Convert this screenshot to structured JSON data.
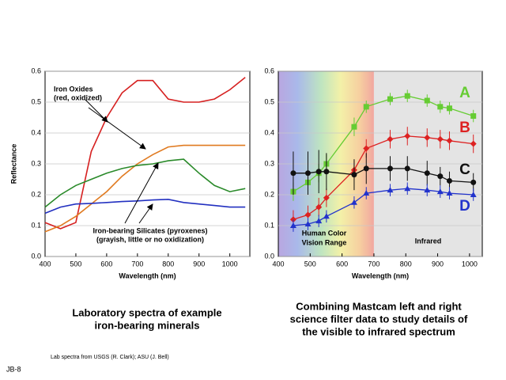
{
  "chart_data": [
    {
      "type": "line",
      "xlabel": "Wavelength (nm)",
      "ylabel": "Reflectance",
      "x": [
        400,
        450,
        500,
        550,
        600,
        650,
        700,
        750,
        800,
        850,
        900,
        950,
        1000,
        1050
      ],
      "series": [
        {
          "color": "#d62020",
          "values": [
            0.11,
            0.09,
            0.11,
            0.34,
            0.45,
            0.53,
            0.57,
            0.57,
            0.51,
            0.5,
            0.5,
            0.51,
            0.54,
            0.58
          ]
        },
        {
          "color": "#e07a20",
          "values": [
            0.08,
            0.1,
            0.13,
            0.17,
            0.21,
            0.26,
            0.3,
            0.33,
            0.355,
            0.36,
            0.36,
            0.36,
            0.36,
            0.36
          ]
        },
        {
          "color": "#2a8a2a",
          "values": [
            0.16,
            0.2,
            0.23,
            0.25,
            0.27,
            0.285,
            0.295,
            0.3,
            0.31,
            0.315,
            0.27,
            0.23,
            0.21,
            0.22
          ]
        },
        {
          "color": "#2230c0",
          "values": [
            0.14,
            0.16,
            0.17,
            0.172,
            0.175,
            0.178,
            0.18,
            0.183,
            0.185,
            0.175,
            0.17,
            0.165,
            0.16,
            0.16
          ]
        }
      ],
      "annotations": [
        [
          "Iron Oxides",
          "(red, oxidized)"
        ],
        [
          "Iron-bearing Silicates (pyroxenes)",
          "(grayish, little or no oxidization)"
        ]
      ],
      "xlim": [
        400,
        1065
      ],
      "ylim": [
        0,
        0.6
      ],
      "xticks": [
        400,
        500,
        600,
        700,
        800,
        900,
        1000
      ],
      "yticks": [
        {
          "value": 0,
          "label": "0.0"
        },
        0.1,
        0.2,
        0.3,
        0.4,
        0.5,
        0.6
      ],
      "grid": true
    },
    {
      "type": "line",
      "xlabel": "Wavelength (nm)",
      "x": [
        447,
        493,
        527,
        551,
        638,
        676,
        751,
        805,
        867,
        908,
        937,
        1012
      ],
      "series": [
        {
          "name": "A",
          "color": "#66cc33",
          "marker": "square",
          "values": [
            0.21,
            0.24,
            0.27,
            0.3,
            0.42,
            0.485,
            0.51,
            0.52,
            0.505,
            0.485,
            0.48,
            0.455
          ],
          "errors": [
            0.03,
            0.03,
            0.03,
            0.03,
            0.03,
            0.02,
            0.02,
            0.02,
            0.02,
            0.02,
            0.02,
            0.02
          ]
        },
        {
          "name": "B",
          "color": "#dd2222",
          "marker": "diamond",
          "values": [
            0.12,
            0.135,
            0.16,
            0.19,
            0.28,
            0.35,
            0.38,
            0.39,
            0.385,
            0.38,
            0.375,
            0.365
          ],
          "errors": [
            0.03,
            0.03,
            0.03,
            0.03,
            0.03,
            0.03,
            0.03,
            0.03,
            0.03,
            0.03,
            0.03,
            0.03
          ]
        },
        {
          "name": "C",
          "color": "#111111",
          "marker": "circle",
          "values": [
            0.27,
            0.27,
            0.275,
            0.275,
            0.265,
            0.285,
            0.285,
            0.285,
            0.27,
            0.26,
            0.245,
            0.24
          ],
          "errors": [
            0.07,
            0.07,
            0.07,
            0.06,
            0.05,
            0.05,
            0.04,
            0.04,
            0.04,
            0.03,
            0.03,
            0.03
          ]
        },
        {
          "name": "D",
          "color": "#2233cc",
          "marker": "triangle",
          "values": [
            0.1,
            0.105,
            0.115,
            0.13,
            0.175,
            0.205,
            0.215,
            0.22,
            0.215,
            0.21,
            0.205,
            0.2
          ],
          "errors": [
            0.02,
            0.02,
            0.02,
            0.02,
            0.02,
            0.02,
            0.02,
            0.02,
            0.02,
            0.02,
            0.02,
            0.02
          ]
        }
      ],
      "regions": [
        {
          "label": [
            "Human Color",
            "Vision Range"
          ],
          "range": [
            400,
            700
          ]
        },
        {
          "label": [
            "Infrared"
          ],
          "range": [
            700,
            1040
          ]
        }
      ],
      "xlim": [
        400,
        1040
      ],
      "ylim": [
        0,
        0.6
      ],
      "xticks": [
        400,
        500,
        600,
        700,
        800,
        900,
        1000
      ],
      "yticks": [
        {
          "value": 0,
          "label": "0.0"
        },
        0.1,
        0.2,
        0.3,
        0.4,
        0.5,
        0.6
      ],
      "grid": true
    }
  ],
  "captions": [
    [
      "Laboratory spectra of example",
      "iron-bearing minerals"
    ],
    [
      "Combining Mastcam left and right",
      "science filter data to study details of",
      "the visible to infrared spectrum"
    ]
  ],
  "footnote": "Lab spectra from USGS (R. Clark); ASU (J. Bell)",
  "slide_id": "JB-8"
}
